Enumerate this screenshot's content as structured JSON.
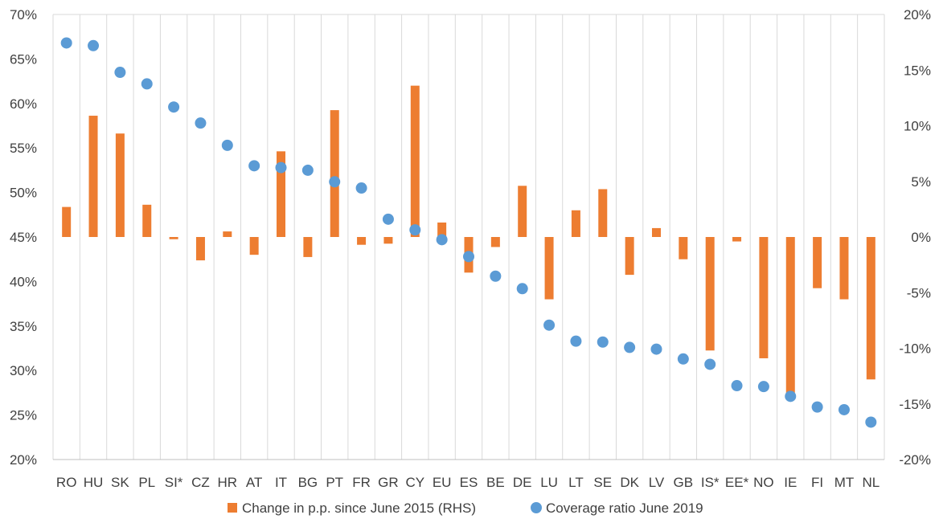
{
  "chart_data": {
    "type": "bar",
    "categories": [
      "RO",
      "HU",
      "SK",
      "PL",
      "SI*",
      "CZ",
      "HR",
      "AT",
      "IT",
      "BG",
      "PT",
      "FR",
      "GR",
      "CY",
      "EU",
      "ES",
      "BE",
      "DE",
      "LU",
      "LT",
      "SE",
      "DK",
      "LV",
      "GB",
      "IS*",
      "EE*",
      "NO",
      "IE",
      "FI",
      "MT",
      "NL"
    ],
    "series": [
      {
        "name": "Change in p.p. since June 2015 (RHS)",
        "type": "bar",
        "axis": "right",
        "color": "#ED7D31",
        "values": [
          2.7,
          10.9,
          9.3,
          2.9,
          -0.2,
          -2.1,
          0.5,
          -1.6,
          7.7,
          -1.8,
          11.4,
          -0.7,
          -0.6,
          13.6,
          1.3,
          -3.2,
          -0.9,
          4.6,
          -5.6,
          2.4,
          4.3,
          -3.4,
          0.8,
          -2.0,
          -10.2,
          -0.4,
          -10.9,
          -14.6,
          -4.6,
          -5.6,
          -12.8
        ]
      },
      {
        "name": "Coverage ratio June 2019",
        "type": "scatter",
        "axis": "left",
        "color": "#5B9BD5",
        "values": [
          66.8,
          66.5,
          63.5,
          62.2,
          59.6,
          57.8,
          55.3,
          53.0,
          52.8,
          52.5,
          51.2,
          50.5,
          47.0,
          45.8,
          44.7,
          42.8,
          40.6,
          39.2,
          35.1,
          33.3,
          33.2,
          32.6,
          32.4,
          31.3,
          30.7,
          28.3,
          28.2,
          27.1,
          25.9,
          25.6,
          24.2
        ]
      }
    ],
    "left_axis": {
      "ylim": [
        20,
        70
      ],
      "ticks": [
        "20%",
        "25%",
        "30%",
        "35%",
        "40%",
        "45%",
        "50%",
        "55%",
        "60%",
        "65%",
        "70%"
      ]
    },
    "right_axis": {
      "ylim": [
        -20,
        20
      ],
      "ticks": [
        "-20%",
        "-15%",
        "-10%",
        "-5%",
        "0%",
        "5%",
        "10%",
        "15%",
        "20%"
      ]
    },
    "grid": "vertical",
    "legend": {
      "position": "bottom",
      "bar_label": "Change in p.p. since June 2015 (RHS)",
      "dot_label": "Coverage ratio June 2019"
    }
  }
}
